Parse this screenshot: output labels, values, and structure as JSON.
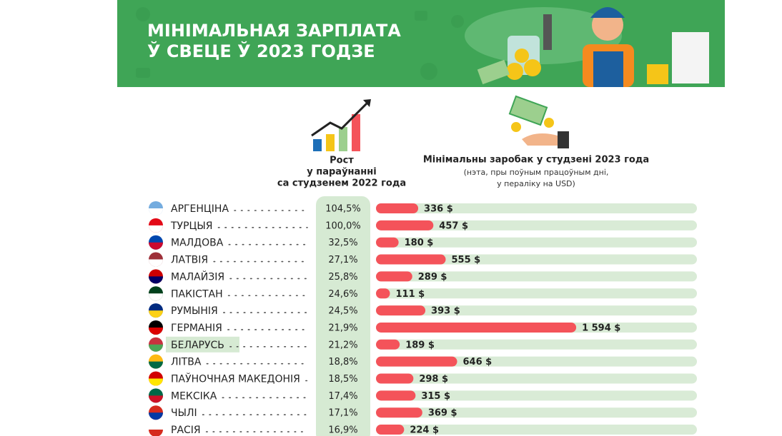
{
  "chart_data": {
    "type": "bar",
    "title": [
      "МІНІМАЛЬНАЯ ЗАРПЛАТА",
      "Ў СВЕЦЕ Ў 2023 ГОДЗЕ"
    ],
    "growth_header": [
      "Рост",
      "у параўнанні",
      "са студзенем 2022 года"
    ],
    "value_header": "Мінімальны заробак у студзені 2023 года",
    "value_note": [
      "(нэта, пры поўным працоўным дні,",
      "у пераліку на USD)"
    ],
    "categories": [
      "АРГЕНЦІНА",
      "ТУРЦЫЯ",
      "МАЛДОВА",
      "ЛАТВІЯ",
      "МАЛАЙЗІЯ",
      "ПАКІСТАН",
      "РУМЫНІЯ",
      "ГЕРМАНІЯ",
      "БЕЛАРУСЬ",
      "ЛІТВА",
      "ПАЎНОЧНАЯ МАКЕДОНІЯ",
      "МЕКСІКА",
      "ЧЫЛІ",
      "РАСІЯ"
    ],
    "growth": {
      "values": [
        104.5,
        100.0,
        32.5,
        27.1,
        25.8,
        24.6,
        24.5,
        21.9,
        21.2,
        18.8,
        18.5,
        17.4,
        17.1,
        16.9
      ],
      "value_labels": [
        "104,5%",
        "100,0%",
        "32,5%",
        "27,1%",
        "25,8%",
        "24,6%",
        "24,5%",
        "21,9%",
        "21,2%",
        "18,8%",
        "18,5%",
        "17,4%",
        "17,1%",
        "16,9%"
      ]
    },
    "values": [
      336,
      457,
      180,
      555,
      289,
      111,
      393,
      1594,
      189,
      646,
      298,
      315,
      369,
      224
    ],
    "value_labels": [
      "336 $",
      "457 $",
      "180 $",
      "555 $",
      "289 $",
      "111 $",
      "393 $",
      "1 594 $",
      "189 $",
      "646 $",
      "298 $",
      "315 $",
      "369 $",
      "224 $"
    ],
    "color": "#f4535a"
  }
}
